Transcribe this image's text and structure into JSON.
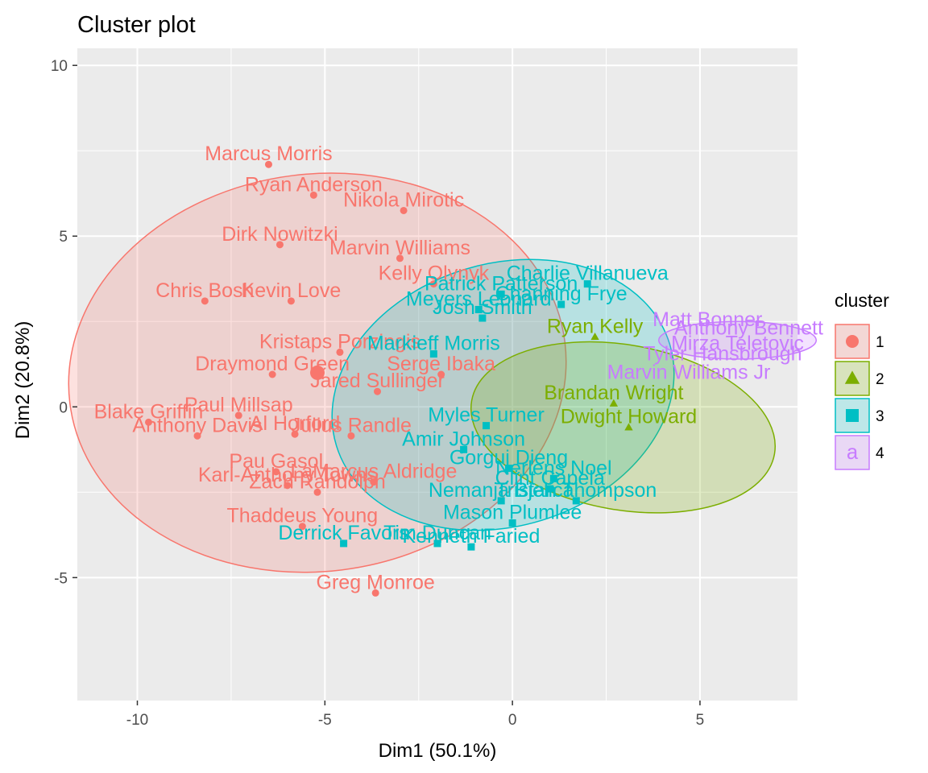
{
  "chart_data": {
    "type": "scatter",
    "title": "Cluster plot",
    "xlabel": "Dim1 (50.1%)",
    "ylabel": "Dim2 (20.8%)",
    "xlim": [
      -11.6,
      7.6
    ],
    "ylim": [
      -8.6,
      10.5
    ],
    "xticks": [
      -10,
      -5,
      0,
      5
    ],
    "yticks": [
      -5,
      0,
      5,
      10
    ],
    "xtick_labels": [
      "-10",
      "-5",
      "0",
      "5"
    ],
    "ytick_labels": [
      "-5",
      "0",
      "5",
      "10"
    ],
    "grid": true,
    "legend": {
      "title": "cluster",
      "position": "right",
      "entries": [
        "1",
        "2",
        "3",
        "4"
      ]
    },
    "colors": {
      "1": "#F8766D",
      "2": "#7CAE00",
      "3": "#00BFC4",
      "4": "#C77CFF"
    },
    "ellipses": [
      {
        "cluster": "1",
        "center": [
          -5.2,
          1.0
        ],
        "semi_axes": [
          5.3,
          7.3
        ],
        "angle_deg": 97
      },
      {
        "cluster": "3",
        "center": [
          -0.25,
          0.35
        ],
        "semi_axes": [
          3.5,
          5.1
        ],
        "angle_deg": 107
      },
      {
        "cluster": "2",
        "center": [
          2.95,
          -0.6
        ],
        "semi_axes": [
          2.2,
          4.5
        ],
        "angle_deg": 80
      },
      {
        "cluster": "4",
        "center": [
          6.0,
          1.95
        ],
        "semi_axes": [
          2.1,
          0.55
        ],
        "angle_deg": 0
      }
    ],
    "centers": [
      {
        "cluster": "1",
        "x": -5.2,
        "y": 1.0
      }
    ],
    "series": [
      {
        "name": "1",
        "points": [
          {
            "label": "Marcus Morris",
            "x": -6.5,
            "y": 7.1
          },
          {
            "label": "Ryan Anderson",
            "x": -5.3,
            "y": 6.2
          },
          {
            "label": "Nikola Mirotic",
            "x": -2.9,
            "y": 5.75
          },
          {
            "label": "Dirk Nowitzki",
            "x": -6.2,
            "y": 4.75
          },
          {
            "label": "Marvin Williams",
            "x": -3.0,
            "y": 4.35
          },
          {
            "label": "Kelly Olynyk",
            "x": -2.1,
            "y": 3.6
          },
          {
            "label": "Chris Bosh",
            "x": -8.2,
            "y": 3.1
          },
          {
            "label": "Kevin Love",
            "x": -5.9,
            "y": 3.1
          },
          {
            "label": "Kristaps Porzingis",
            "x": -4.6,
            "y": 1.6
          },
          {
            "label": "Draymond Green",
            "x": -6.4,
            "y": 0.95
          },
          {
            "label": "Serge Ibaka",
            "x": -1.9,
            "y": 0.95
          },
          {
            "label": "Jared Sullinger",
            "x": -3.6,
            "y": 0.45
          },
          {
            "label": "Blake Griffin",
            "x": -9.7,
            "y": -0.45
          },
          {
            "label": "Paul Millsap",
            "x": -7.3,
            "y": -0.25
          },
          {
            "label": "Al Horford",
            "x": -5.8,
            "y": -0.8
          },
          {
            "label": "Julius Randle",
            "x": -4.3,
            "y": -0.85
          },
          {
            "label": "Anthony Davis",
            "x": -8.4,
            "y": -0.85
          },
          {
            "label": "Pau Gasol",
            "x": -6.3,
            "y": -1.9
          },
          {
            "label": "Karl-Anthony Towns",
            "x": -6.0,
            "y": -2.3
          },
          {
            "label": "Zach Randolph",
            "x": -5.2,
            "y": -2.5
          },
          {
            "label": "LaMarcus Aldridge",
            "x": -3.7,
            "y": -2.2
          },
          {
            "label": "Thaddeus Young",
            "x": -5.6,
            "y": -3.5
          },
          {
            "label": "Greg Monroe",
            "x": -3.65,
            "y": -5.45
          }
        ]
      },
      {
        "name": "3",
        "points": [
          {
            "label": "Charlie Villanueva",
            "x": 2.0,
            "y": 3.6
          },
          {
            "label": "Patrick Patterson",
            "x": -0.3,
            "y": 3.3
          },
          {
            "label": "Meyers Leonard",
            "x": -0.9,
            "y": 2.85
          },
          {
            "label": "Channing Frye",
            "x": 1.3,
            "y": 3.0
          },
          {
            "label": "Josh Smith",
            "x": -0.8,
            "y": 2.6
          },
          {
            "label": "Markieff Morris",
            "x": -2.1,
            "y": 1.55
          },
          {
            "label": "Myles Turner",
            "x": -0.7,
            "y": -0.55
          },
          {
            "label": "Amir Johnson",
            "x": -1.3,
            "y": -1.25
          },
          {
            "label": "Gorgui Dieng",
            "x": -0.1,
            "y": -1.8
          },
          {
            "label": "Nerlens Noel",
            "x": 1.1,
            "y": -2.1
          },
          {
            "label": "Clint Capela",
            "x": 1.0,
            "y": -2.4
          },
          {
            "label": "Tristan Thompson",
            "x": 1.7,
            "y": -2.75
          },
          {
            "label": "Nemanja Bjelica",
            "x": -0.3,
            "y": -2.75
          },
          {
            "label": "Derrick Favors",
            "x": -4.5,
            "y": -4.0
          },
          {
            "label": "Tim Duncan",
            "x": -2.0,
            "y": -4.0
          },
          {
            "label": "Kenneth Faried",
            "x": -1.1,
            "y": -4.1
          },
          {
            "label": "Mason Plumlee",
            "x": 0.0,
            "y": -3.4
          }
        ]
      },
      {
        "name": "2",
        "points": [
          {
            "label": "Ryan Kelly",
            "x": 2.2,
            "y": 2.05
          },
          {
            "label": "Brandan Wright",
            "x": 2.7,
            "y": 0.1
          },
          {
            "label": "Dwight Howard",
            "x": 3.1,
            "y": -0.6
          }
        ]
      },
      {
        "name": "4",
        "points": [
          {
            "label": "Matt Bonner",
            "x": 5.2,
            "y": 2.25
          },
          {
            "label": "Anthony Bennett",
            "x": 6.3,
            "y": 2.0
          },
          {
            "label": "Mirza Teletovic",
            "x": 6.0,
            "y": 1.55
          },
          {
            "label": "Tyler Hansbrough",
            "x": 5.6,
            "y": 1.25
          },
          {
            "label": "Marvin Williams Jr",
            "x": 4.7,
            "y": 0.7
          }
        ]
      }
    ]
  }
}
